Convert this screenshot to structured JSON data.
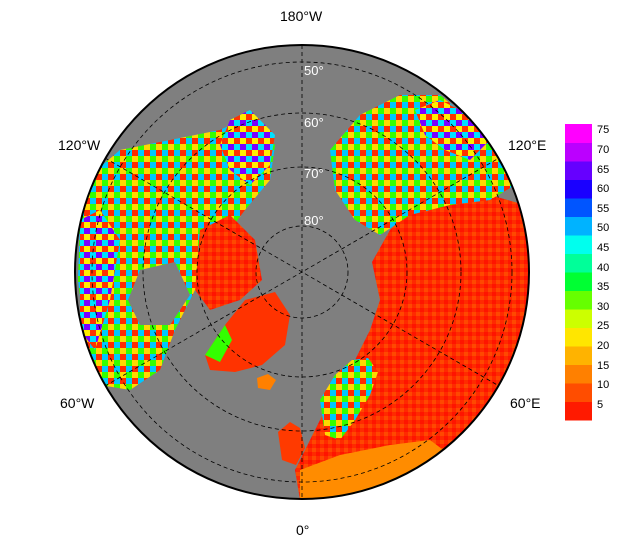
{
  "map": {
    "projection": "north-polar-stereographic",
    "background_color": "#7f7f7f",
    "grid_style": "dashed",
    "longitude_labels": {
      "top": "180°W",
      "bottom": "0°",
      "upper_left": "120°W",
      "upper_right": "120°E",
      "lower_left": "60°W",
      "lower_right": "60°E"
    },
    "latitude_labels": [
      "50°",
      "60°",
      "70°",
      "80°"
    ]
  },
  "colorbar": {
    "ticks": [
      "75",
      "70",
      "65",
      "60",
      "55",
      "50",
      "45",
      "40",
      "35",
      "30",
      "25",
      "20",
      "15",
      "10",
      "5"
    ],
    "colors": [
      "#ff1a00",
      "#ff4d00",
      "#ff8000",
      "#ffb300",
      "#ffe600",
      "#ccff00",
      "#66ff00",
      "#00ff33",
      "#00ff99",
      "#00ffee",
      "#00b3ff",
      "#0055ff",
      "#1a00ff",
      "#6600ff",
      "#bb00ff",
      "#ff00ff"
    ]
  }
}
